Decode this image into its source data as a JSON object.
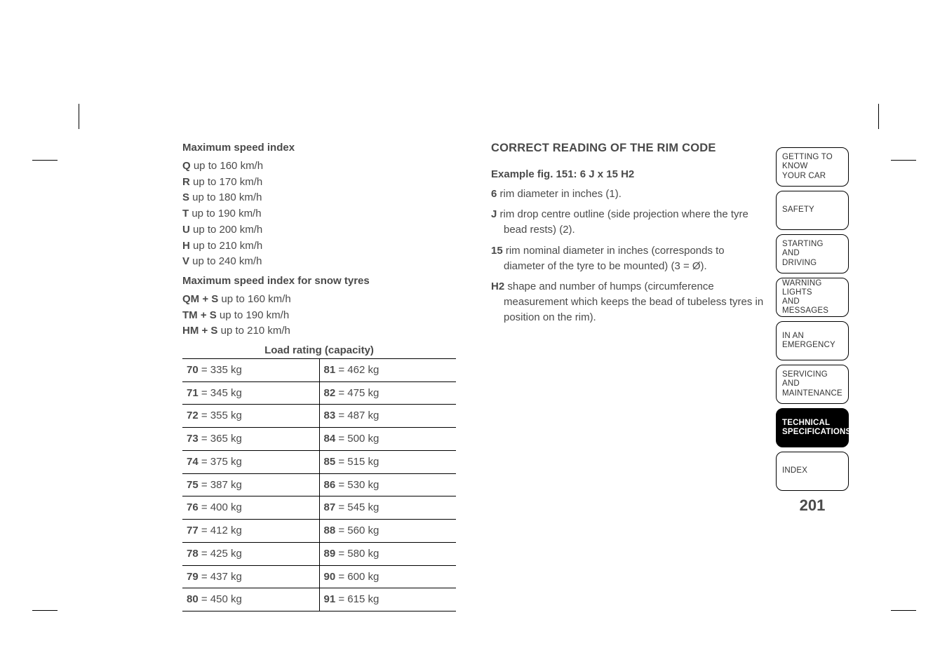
{
  "left": {
    "max_speed_heading": "Maximum speed index",
    "speed_indices": [
      {
        "code": "Q",
        "text": " up to 160 km/h"
      },
      {
        "code": "R",
        "text": " up to 170 km/h"
      },
      {
        "code": "S",
        "text": " up to 180 km/h"
      },
      {
        "code": "T",
        "text": " up to 190 km/h"
      },
      {
        "code": "U",
        "text": " up to 200 km/h"
      },
      {
        "code": "H",
        "text": " up to 210 km/h"
      },
      {
        "code": "V",
        "text": " up to 240 km/h"
      }
    ],
    "snow_heading": "Maximum speed index for snow tyres",
    "snow_indices": [
      {
        "code": "QM + S",
        "text": " up to 160 km/h"
      },
      {
        "code": "TM + S",
        "text": " up to 190 km/h"
      },
      {
        "code": "HM + S",
        "text": " up to 210 km/h"
      }
    ],
    "load_caption": "Load rating (capacity)",
    "load_rows": [
      {
        "l_code": "70",
        "l_val": " = 335 kg",
        "r_code": "81",
        "r_val": " = 462 kg"
      },
      {
        "l_code": "71",
        "l_val": " = 345 kg",
        "r_code": "82",
        "r_val": " = 475 kg"
      },
      {
        "l_code": "72",
        "l_val": " = 355 kg",
        "r_code": "83",
        "r_val": " = 487 kg"
      },
      {
        "l_code": "73",
        "l_val": " = 365 kg",
        "r_code": "84",
        "r_val": " = 500 kg"
      },
      {
        "l_code": "74",
        "l_val": " = 375 kg",
        "r_code": "85",
        "r_val": " = 515 kg"
      },
      {
        "l_code": "75",
        "l_val": " = 387 kg",
        "r_code": "86",
        "r_val": " = 530 kg"
      },
      {
        "l_code": "76",
        "l_val": " = 400 kg",
        "r_code": "87",
        "r_val": " = 545 kg"
      },
      {
        "l_code": "77",
        "l_val": " = 412 kg",
        "r_code": "88",
        "r_val": " = 560 kg"
      },
      {
        "l_code": "78",
        "l_val": " = 425 kg",
        "r_code": "89",
        "r_val": " = 580 kg"
      },
      {
        "l_code": "79",
        "l_val": " = 437 kg",
        "r_code": "90",
        "r_val": " = 600 kg"
      },
      {
        "l_code": "80",
        "l_val": " = 450 kg",
        "r_code": "91",
        "r_val": " = 615 kg"
      }
    ]
  },
  "right": {
    "heading": "CORRECT READING OF THE RIM CODE",
    "example": "Example fig. 151: 6 J x 15 H2",
    "items": [
      {
        "code": "6",
        "text": " rim diameter in inches (1)."
      },
      {
        "code": "J",
        "text": " rim drop centre outline (side projection where the tyre bead rests) (2)."
      },
      {
        "code": "15",
        "text": " rim nominal diameter in inches (corresponds to diameter of the tyre to be mounted) (3 = Ø)."
      },
      {
        "code": "H2",
        "text": " shape and number of humps (circumference measurement which keeps the bead of tubeless tyres in position on the rim)."
      }
    ]
  },
  "sidebar": {
    "tabs": [
      {
        "l1": "GETTING TO KNOW",
        "l2": "YOUR CAR"
      },
      {
        "l1": "SAFETY",
        "l2": ""
      },
      {
        "l1": "STARTING AND",
        "l2": "DRIVING"
      },
      {
        "l1": "WARNING LIGHTS",
        "l2": "AND MESSAGES"
      },
      {
        "l1": "IN AN EMERGENCY",
        "l2": ""
      },
      {
        "l1": "SERVICING AND",
        "l2": "MAINTENANCE"
      },
      {
        "l1": "TECHNICAL",
        "l2": "SPECIFICATIONS"
      },
      {
        "l1": "INDEX",
        "l2": ""
      }
    ],
    "active_index": 6,
    "page_number": "201"
  }
}
